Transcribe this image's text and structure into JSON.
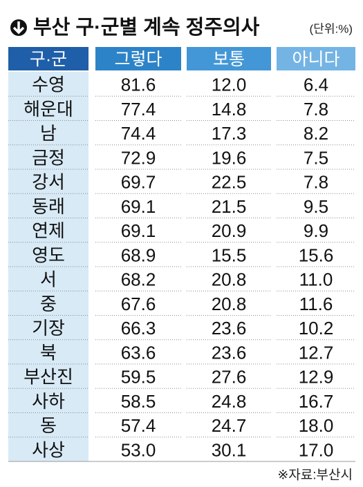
{
  "header": {
    "title": "부산 구·군별 계속 정주의사",
    "unit": "(단위:%)"
  },
  "table": {
    "columns": [
      "구·군",
      "그렇다",
      "보통",
      "아니다"
    ],
    "rows": [
      [
        "수영",
        "81.6",
        "12.0",
        "6.4"
      ],
      [
        "해운대",
        "77.4",
        "14.8",
        "7.8"
      ],
      [
        "남",
        "74.4",
        "17.3",
        "8.2"
      ],
      [
        "금정",
        "72.9",
        "19.6",
        "7.5"
      ],
      [
        "강서",
        "69.7",
        "22.5",
        "7.8"
      ],
      [
        "동래",
        "69.1",
        "21.5",
        "9.5"
      ],
      [
        "연제",
        "69.1",
        "20.9",
        "9.9"
      ],
      [
        "영도",
        "68.9",
        "15.5",
        "15.6"
      ],
      [
        "서",
        "68.2",
        "20.8",
        "11.0"
      ],
      [
        "중",
        "67.6",
        "20.8",
        "11.6"
      ],
      [
        "기장",
        "66.3",
        "23.6",
        "10.2"
      ],
      [
        "북",
        "63.6",
        "23.6",
        "12.7"
      ],
      [
        "부산진",
        "59.5",
        "27.6",
        "12.9"
      ],
      [
        "사하",
        "58.5",
        "24.8",
        "16.7"
      ],
      [
        "동",
        "57.4",
        "24.7",
        "18.0"
      ],
      [
        "사상",
        "53.0",
        "30.1",
        "17.0"
      ]
    ]
  },
  "footer": {
    "source": "※자료:부산시"
  }
}
